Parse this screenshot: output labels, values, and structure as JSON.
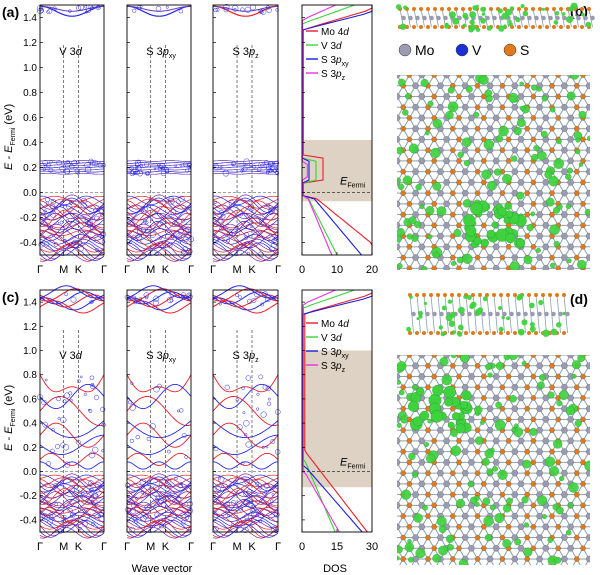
{
  "figure": {
    "panels": [
      {
        "id": "a",
        "label": "(a)",
        "ylabel": "E - E",
        "ylabel_sub": "Fermi",
        "ylabel_unit": " (eV)",
        "ylim": [
          -0.5,
          1.5
        ],
        "ytick_labels": [
          "1.4",
          "1.2",
          "1.0",
          "0.8",
          "0.6",
          "0.4",
          "0.2",
          "0.0",
          "-0.2",
          "-0.4"
        ],
        "kpoint_labels": [
          "Γ",
          "M",
          "K",
          "Γ"
        ],
        "subpanels": [
          {
            "atom": "V",
            "orbital": "3",
            "orbital_italic": "d",
            "orbital_sub": ""
          },
          {
            "atom": "S",
            "orbital": "3",
            "orbital_italic": "p",
            "orbital_sub": "xy"
          },
          {
            "atom": "S",
            "orbital": "3",
            "orbital_italic": "p",
            "orbital_sub": "z"
          }
        ]
      },
      {
        "id": "c",
        "label": "(c)",
        "ylabel": "E - E",
        "ylabel_sub": "Fermi",
        "ylabel_unit": " (eV)",
        "ylim": [
          -0.5,
          1.5
        ],
        "ytick_labels": [
          "1.4",
          "1.2",
          "1.0",
          "0.8",
          "0.6",
          "0.4",
          "0.2",
          "0.0",
          "-0.2",
          "-0.4"
        ],
        "kpoint_labels": [
          "Γ",
          "M",
          "K",
          "Γ"
        ],
        "subpanels": [
          {
            "atom": "V",
            "orbital": "3",
            "orbital_italic": "d",
            "orbital_sub": ""
          },
          {
            "atom": "S",
            "orbital": "3",
            "orbital_italic": "p",
            "orbital_sub": "xy"
          },
          {
            "atom": "S",
            "orbital": "3",
            "orbital_italic": "p",
            "orbital_sub": "z"
          }
        ]
      }
    ],
    "dos_panels": [
      {
        "panel": "a",
        "xtick_labels": [
          "0",
          "10",
          "20"
        ],
        "xlim": [
          0,
          20
        ],
        "fermi_label": "E",
        "fermi_sub": "Fermi",
        "legend": [
          {
            "atom": "Mo",
            "orbital": "4",
            "orbital_italic": "d",
            "sub": "",
            "color": "#e8202a"
          },
          {
            "atom": "V",
            "orbital": "3",
            "orbital_italic": "d",
            "sub": "",
            "color": "#3cd23c"
          },
          {
            "atom": "S",
            "orbital": "3",
            "orbital_italic": "p",
            "sub": "xy",
            "color": "#1c1cdc"
          },
          {
            "atom": "S",
            "orbital": "3",
            "orbital_italic": "p",
            "sub": "z",
            "color": "#e633e6"
          }
        ]
      },
      {
        "panel": "c",
        "xtick_labels": [
          "0",
          "15",
          "30"
        ],
        "xlim": [
          0,
          30
        ],
        "fermi_label": "E",
        "fermi_sub": "Fermi",
        "legend": [
          {
            "atom": "Mo",
            "orbital": "4",
            "orbital_italic": "d",
            "sub": "",
            "color": "#e8202a"
          },
          {
            "atom": "V",
            "orbital": "3",
            "orbital_italic": "d",
            "sub": "",
            "color": "#3cd23c"
          },
          {
            "atom": "S",
            "orbital": "3",
            "orbital_italic": "p",
            "sub": "xy",
            "color": "#1c1cdc"
          },
          {
            "atom": "S",
            "orbital": "3",
            "orbital_italic": "p",
            "sub": "z",
            "color": "#e633e6"
          }
        ]
      }
    ],
    "structure_panels": [
      {
        "id": "b",
        "label": "(b)"
      },
      {
        "id": "d",
        "label": "(d)"
      }
    ],
    "atom_legend": [
      {
        "symbol": "Mo",
        "color": "#9a9ab0"
      },
      {
        "symbol": "V",
        "color": "#1a2fd6"
      },
      {
        "symbol": "S",
        "color": "#e07a1a"
      }
    ],
    "xlabel_bands": "Wave vector",
    "xlabel_dos": "DOS",
    "colors": {
      "mo": "#e8202a",
      "proj": "#2a2ae6",
      "v": "#3cd23c",
      "sxy": "#1c1cdc",
      "sz": "#e633e6",
      "shade": "#ddd2c3",
      "isosurface": "#3fd23f"
    }
  }
}
